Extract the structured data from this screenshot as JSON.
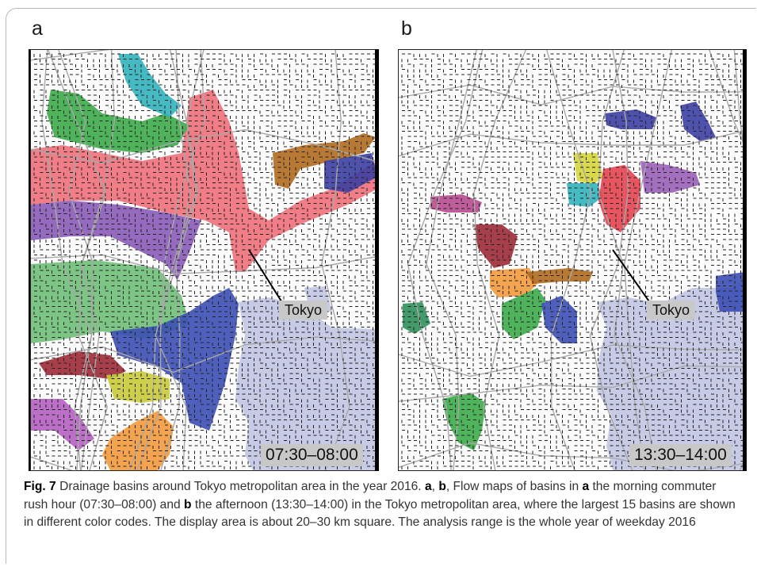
{
  "panels": [
    {
      "letter": "a",
      "tokyo_label": "Tokyo",
      "time_label": "07:30–08:00",
      "basins": [
        {
          "color": "#f0707a",
          "name": "red"
        },
        {
          "color": "#8a5bb8",
          "name": "purple"
        },
        {
          "color": "#3cab4a",
          "name": "green"
        },
        {
          "color": "#6fbf77",
          "name": "light-green"
        },
        {
          "color": "#3b4fb5",
          "name": "blue"
        },
        {
          "color": "#32b3bb",
          "name": "cyan"
        },
        {
          "color": "#b06a1f",
          "name": "brown"
        },
        {
          "color": "#9c2a35",
          "name": "dark-red"
        },
        {
          "color": "#c9cb3a",
          "name": "yellow-green"
        },
        {
          "color": "#b45fc0",
          "name": "magenta"
        },
        {
          "color": "#f39a3c",
          "name": "orange"
        }
      ]
    },
    {
      "letter": "b",
      "tokyo_label": "Tokyo",
      "time_label": "13:30–14:00",
      "basins": [
        {
          "color": "#3b3fa3",
          "name": "dark-blue"
        },
        {
          "color": "#d6d43a",
          "name": "yellow"
        },
        {
          "color": "#32b3bb",
          "name": "cyan"
        },
        {
          "color": "#e3424f",
          "name": "red"
        },
        {
          "color": "#9a5fb7",
          "name": "purple"
        },
        {
          "color": "#b84a8f",
          "name": "magenta"
        },
        {
          "color": "#9c2a35",
          "name": "dark-red"
        },
        {
          "color": "#f39a3c",
          "name": "orange"
        },
        {
          "color": "#b06a1f",
          "name": "brown"
        },
        {
          "color": "#3cab4a",
          "name": "green"
        },
        {
          "color": "#3b4fb5",
          "name": "blue"
        },
        {
          "color": "#2f8f5a",
          "name": "teal-green"
        }
      ]
    }
  ],
  "colors": {
    "water": "#c8cbe6",
    "arrow": "#222222",
    "road": "#a8a8a8"
  },
  "caption": {
    "label": "Fig. 7",
    "part1": "  Drainage basins around Tokyo metropolitan area in the year 2016. ",
    "a": "a",
    "comma": ", ",
    "b": "b",
    "part2": ", Flow maps of basins in ",
    "a2": "a",
    "part3": " the morning commuter rush hour (07:30–08:00) and ",
    "b2": "b",
    "part4": " the afternoon (13:30–14:00) in the Tokyo metropolitan area, where the largest 15 basins are shown in different color codes. The display area is about 20–30 km square. The analysis range is the whole year of weekday 2016"
  }
}
